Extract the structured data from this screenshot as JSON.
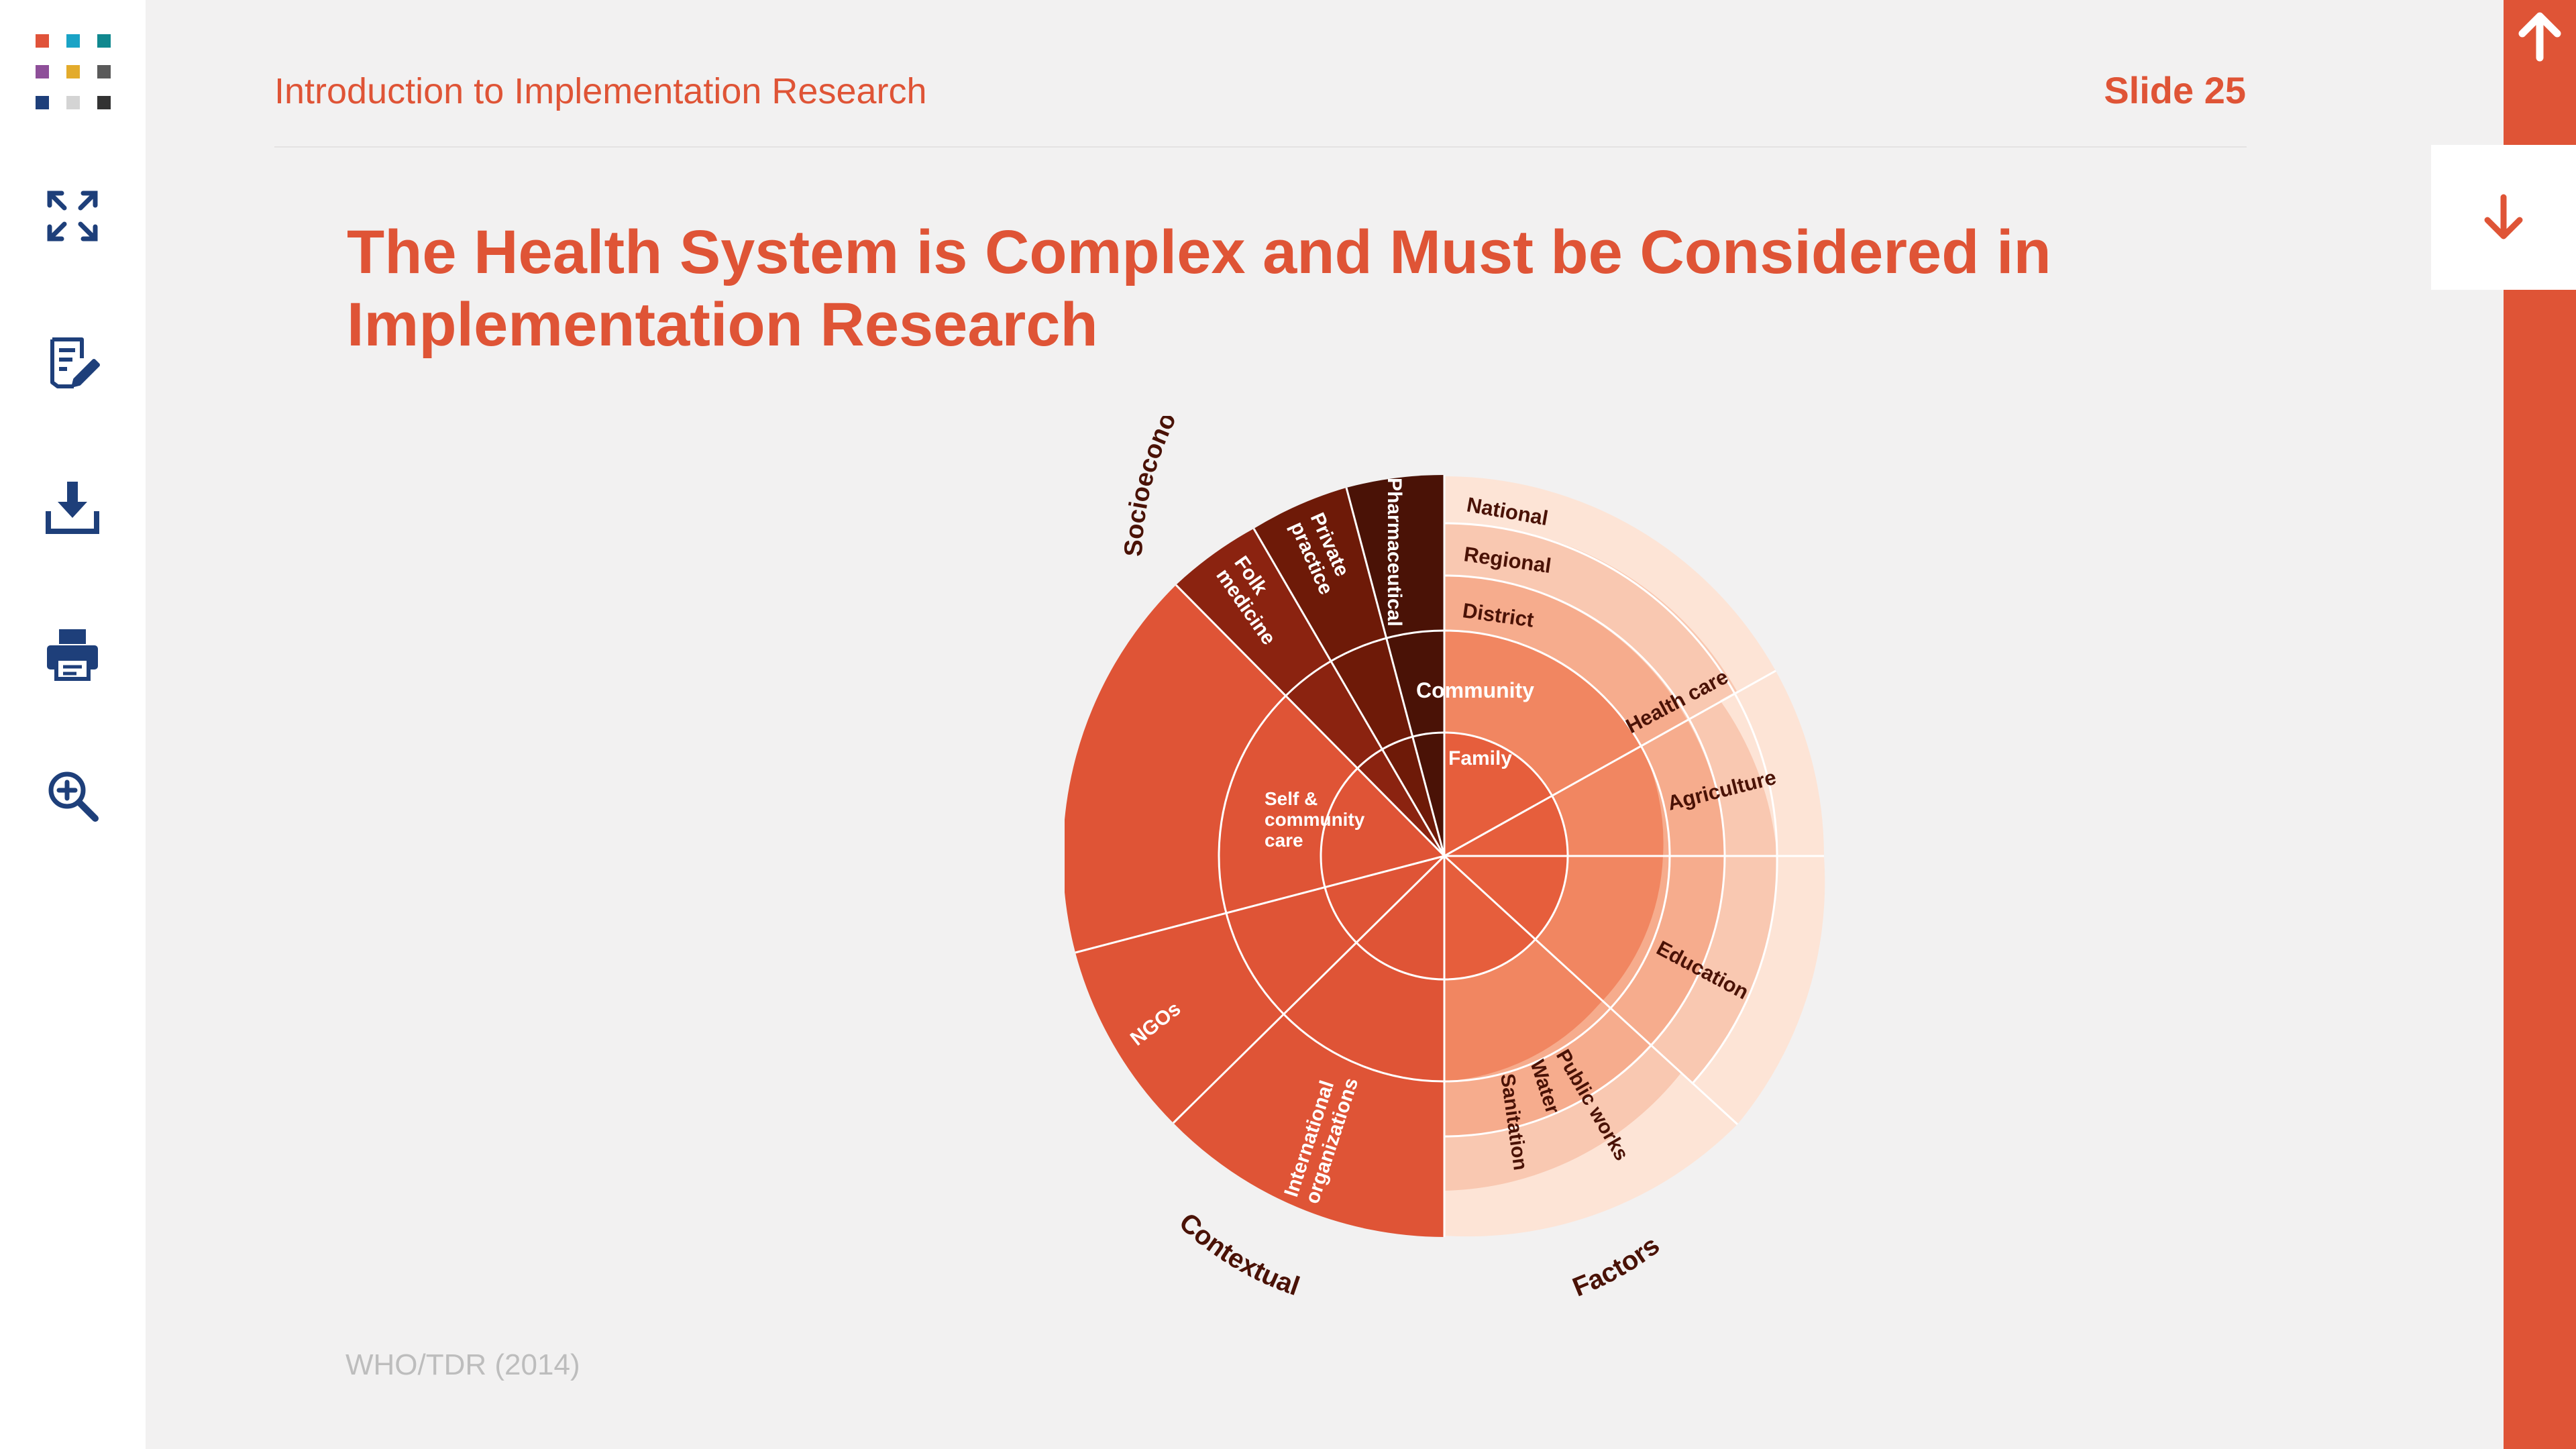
{
  "header": {
    "course_title": "Introduction to Implementation Research",
    "slide_label": "Slide 25"
  },
  "slide": {
    "title_line1": "The Health System is Complex and Must be Considered in",
    "title_line2": "Implementation Research",
    "source": "WHO/TDR (2014)"
  },
  "toolbar": [
    {
      "name": "fullscreen-icon"
    },
    {
      "name": "notes-edit-icon"
    },
    {
      "name": "download-icon"
    },
    {
      "name": "print-icon"
    },
    {
      "name": "zoom-in-icon"
    }
  ],
  "navigation": {
    "up_icon": "arrow-up-icon",
    "down_icon": "arrow-down-icon"
  },
  "colors": {
    "accent": "#df5436",
    "dark_brown": "#4a1206",
    "icon_navy": "#1e3f7a"
  },
  "logo_colors": [
    "#e0533a",
    "#1aa3c6",
    "#10888f",
    "#8e4f99",
    "#e3ab2b",
    "#5a5a5a",
    "#1e3f7a",
    "#d4d4d4",
    "#333333"
  ],
  "chart_data": {
    "type": "sunburst",
    "center": "Family",
    "ring1": "Community",
    "ring2_left": "Self & community care",
    "outer_labels": {
      "top": "Socioeconomic, political, cultural, physical, epidemiological",
      "bottom_left": "Contextual",
      "bottom_right": "Factors"
    },
    "health_care_levels": [
      "National",
      "Regional",
      "District"
    ],
    "right_sectors": [
      "Health care",
      "Agriculture",
      "Education",
      "Public works",
      "Water",
      "Sanitation"
    ],
    "left_sectors": [
      "Pharmaceutical",
      "Private practice",
      "Folk medicine",
      "NGOs",
      "International organizations"
    ]
  }
}
